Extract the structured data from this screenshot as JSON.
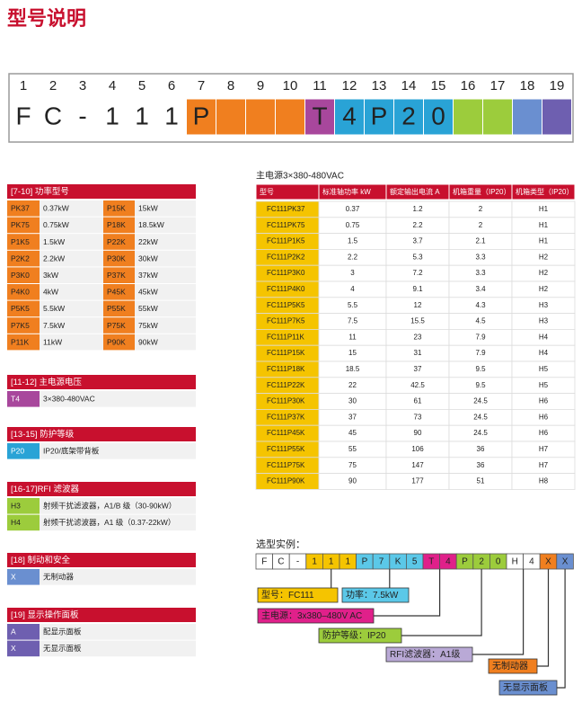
{
  "title": "型号说明",
  "code_bar": {
    "positions": [
      "1",
      "2",
      "3",
      "4",
      "5",
      "6",
      "7",
      "8",
      "9",
      "10",
      "11",
      "12",
      "13",
      "14",
      "15",
      "16",
      "17",
      "18",
      "19"
    ],
    "cells": [
      {
        "char": "F"
      },
      {
        "char": "C"
      },
      {
        "char": "-"
      },
      {
        "char": "1"
      },
      {
        "char": "1"
      },
      {
        "char": "1"
      },
      {
        "char": "P",
        "color": "#f07f1f"
      },
      {
        "color": "#f07f1f"
      },
      {
        "color": "#f07f1f"
      },
      {
        "color": "#f07f1f"
      },
      {
        "char": "T",
        "color": "#a8479c"
      },
      {
        "char": "4",
        "color": "#29a3d6"
      },
      {
        "char": "P",
        "color": "#29a3d6"
      },
      {
        "char": "2",
        "color": "#29a3d6"
      },
      {
        "char": "0",
        "color": "#29a3d6"
      },
      {
        "color": "#9ccc3c"
      },
      {
        "color": "#9ccc3c"
      },
      {
        "color": "#6a8fd0"
      },
      {
        "color": "#6e5fb0"
      }
    ]
  },
  "left_sections": [
    {
      "heading": "[7-10] 功率型号",
      "color": "#f07f1f",
      "rows": [
        [
          "PK37",
          "0.37kW",
          "P15K",
          "15kW"
        ],
        [
          "PK75",
          "0.75kW",
          "P18K",
          "18.5kW"
        ],
        [
          "P1K5",
          "1.5kW",
          "P22K",
          "22kW"
        ],
        [
          "P2K2",
          "2.2kW",
          "P30K",
          "30kW"
        ],
        [
          "P3K0",
          "3kW",
          "P37K",
          "37kW"
        ],
        [
          "P4K0",
          "4kW",
          "P45K",
          "45kW"
        ],
        [
          "P5K5",
          "5.5kW",
          "P55K",
          "55kW"
        ],
        [
          "P7K5",
          "7.5kW",
          "P75K",
          "75kW"
        ],
        [
          "P11K",
          "11kW",
          "P90K",
          "90kW"
        ]
      ]
    },
    {
      "heading": "[11-12] 主电源电压",
      "color": "#a8479c",
      "rows": [
        [
          "T4",
          "3×380-480VAC"
        ]
      ]
    },
    {
      "heading": "[13-15] 防护等级",
      "color": "#29a3d6",
      "rows": [
        [
          "P20",
          "IP20/底架带背板"
        ]
      ]
    },
    {
      "heading": "[16-17]RFI 滤波器",
      "color": "#9ccc3c",
      "rows": [
        [
          "H3",
          "射频干扰滤波器，A1/B 级（30-90kW）"
        ],
        [
          "H4",
          "射频干扰滤波器，A1 级（0.37-22kW）"
        ]
      ]
    },
    {
      "heading": "[18] 制动和安全",
      "color": "#6a8fd0",
      "rows": [
        [
          "X",
          "无制动器"
        ]
      ]
    },
    {
      "heading": "[19] 显示操作面板",
      "color": "#6e5fb0",
      "rows": [
        [
          "A",
          "配显示面板"
        ],
        [
          "X",
          "无显示面板"
        ]
      ]
    }
  ],
  "spec_table": {
    "caption": "主电源3×380-480VAC",
    "headers": [
      "型号",
      "标准轴功率 kW",
      "额定输出电流 A",
      "机箱重量（IP20）",
      "机箱类型（IP20）"
    ],
    "rows": [
      [
        "FC111PK37",
        "0.37",
        "1.2",
        "2",
        "H1"
      ],
      [
        "FC111PK75",
        "0.75",
        "2.2",
        "2",
        "H1"
      ],
      [
        "FC111P1K5",
        "1.5",
        "3.7",
        "2.1",
        "H1"
      ],
      [
        "FC111P2K2",
        "2.2",
        "5.3",
        "3.3",
        "H2"
      ],
      [
        "FC111P3K0",
        "3",
        "7.2",
        "3.3",
        "H2"
      ],
      [
        "FC111P4K0",
        "4",
        "9.1",
        "3.4",
        "H2"
      ],
      [
        "FC111P5K5",
        "5.5",
        "12",
        "4.3",
        "H3"
      ],
      [
        "FC111P7K5",
        "7.5",
        "15.5",
        "4.5",
        "H3"
      ],
      [
        "FC111P11K",
        "11",
        "23",
        "7.9",
        "H4"
      ],
      [
        "FC111P15K",
        "15",
        "31",
        "7.9",
        "H4"
      ],
      [
        "FC111P18K",
        "18.5",
        "37",
        "9.5",
        "H5"
      ],
      [
        "FC111P22K",
        "22",
        "42.5",
        "9.5",
        "H5"
      ],
      [
        "FC111P30K",
        "30",
        "61",
        "24.5",
        "H6"
      ],
      [
        "FC111P37K",
        "37",
        "73",
        "24.5",
        "H6"
      ],
      [
        "FC111P45K",
        "45",
        "90",
        "24.5",
        "H6"
      ],
      [
        "FC111P55K",
        "55",
        "106",
        "36",
        "H7"
      ],
      [
        "FC111P75K",
        "75",
        "147",
        "36",
        "H7"
      ],
      [
        "FC111P90K",
        "90",
        "177",
        "51",
        "H8"
      ]
    ]
  },
  "example": {
    "label": "选型实例：",
    "cells": [
      {
        "char": "F"
      },
      {
        "char": "C"
      },
      {
        "char": "-"
      },
      {
        "char": "1",
        "color": "#f5c400"
      },
      {
        "char": "1",
        "color": "#f5c400"
      },
      {
        "char": "1",
        "color": "#f5c400"
      },
      {
        "char": "P",
        "color": "#5bc8e8"
      },
      {
        "char": "7",
        "color": "#5bc8e8"
      },
      {
        "char": "K",
        "color": "#5bc8e8"
      },
      {
        "char": "5",
        "color": "#5bc8e8"
      },
      {
        "char": "T",
        "color": "#e0208a"
      },
      {
        "char": "4",
        "color": "#e0208a"
      },
      {
        "char": "P",
        "color": "#9ccc3c"
      },
      {
        "char": "2",
        "color": "#9ccc3c"
      },
      {
        "char": "0",
        "color": "#9ccc3c"
      },
      {
        "char": "H"
      },
      {
        "char": "4"
      },
      {
        "char": "X",
        "color": "#f07f1f"
      },
      {
        "char": "X",
        "color": "#6a8fd0"
      }
    ],
    "callouts": [
      {
        "text": "型号：FC111",
        "color": "#f5c400"
      },
      {
        "text": "功率：7.5kW",
        "color": "#5bc8e8"
      },
      {
        "text": "主电源：3x380–480V AC",
        "color": "#e0208a"
      },
      {
        "text": "防护等级：IP20",
        "color": "#9ccc3c"
      },
      {
        "text": "RFI滤波器：A1级",
        "color": "#b9a9d6"
      },
      {
        "text": "无制动器",
        "color": "#f07f1f"
      },
      {
        "text": "无显示面板",
        "color": "#6a8fd0"
      }
    ]
  }
}
